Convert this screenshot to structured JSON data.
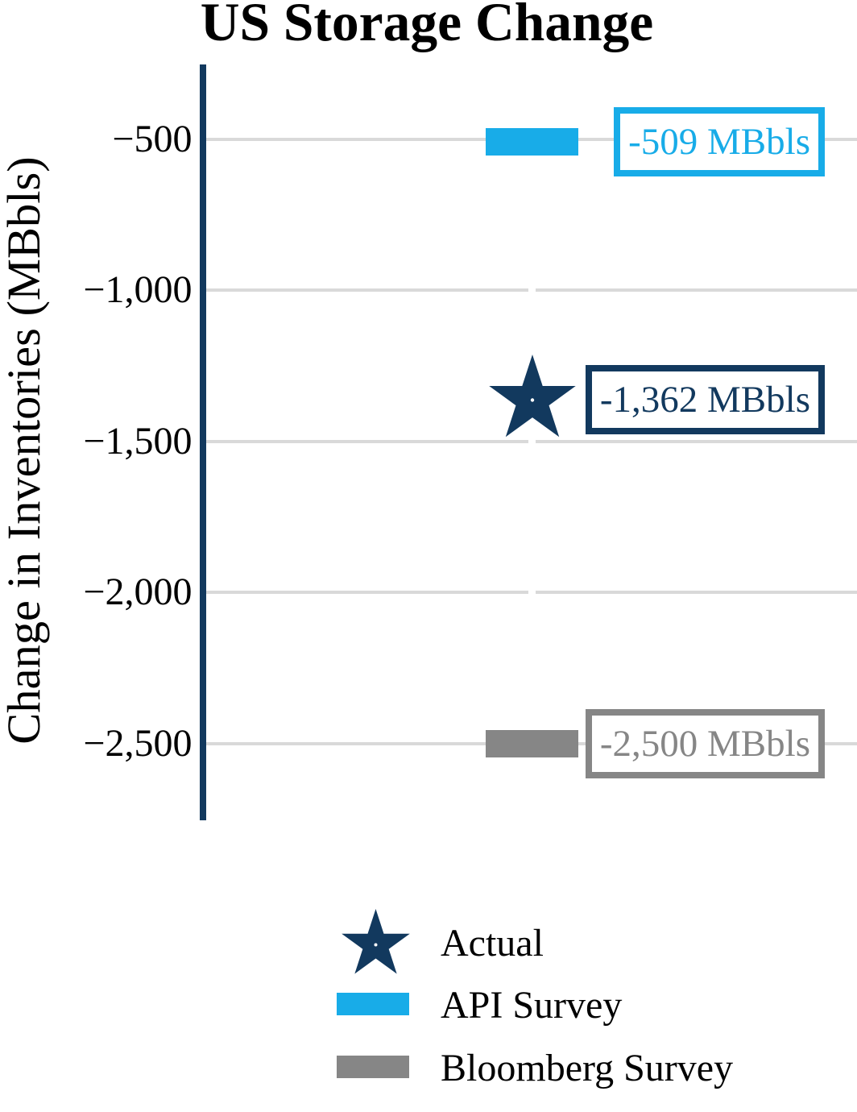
{
  "title": "US Storage Change",
  "y_axis": {
    "label": "Change in Inventories (MBbls)",
    "ticks": [
      {
        "value": -500,
        "label": "−500"
      },
      {
        "value": -1000,
        "label": "−1,000"
      },
      {
        "value": -1500,
        "label": "−1,500"
      },
      {
        "value": -2000,
        "label": "−2,000"
      },
      {
        "value": -2500,
        "label": "−2,500"
      }
    ]
  },
  "colors": {
    "navy": "#12395e",
    "cyan": "#18ace8",
    "gray": "#868686",
    "gridline": "#d9d9d9",
    "background": "#ffffff",
    "text": "#000000"
  },
  "legend": [
    {
      "name": "Actual",
      "marker": "star",
      "color": "#12395e"
    },
    {
      "name": "API Survey",
      "marker": "bar",
      "color": "#18ace8"
    },
    {
      "name": "Bloomberg Survey",
      "marker": "bar",
      "color": "#868686"
    }
  ],
  "chart_data": {
    "type": "scatter",
    "title": "US Storage Change",
    "xlabel": "",
    "ylabel": "Change in Inventories (MBbls)",
    "ylim": [
      -2750,
      -250
    ],
    "yticks": [
      -500,
      -1000,
      -1500,
      -2000,
      -2500
    ],
    "grid": "horizontal",
    "legend_position": "bottom",
    "series": [
      {
        "name": "Actual",
        "marker": "star",
        "color": "#12395e",
        "value": -1362,
        "data_label": "-1,362 MBbls"
      },
      {
        "name": "API Survey",
        "marker": "bar",
        "color": "#18ace8",
        "value": -509,
        "data_label": "-509 MBbls"
      },
      {
        "name": "Bloomberg Survey",
        "marker": "bar",
        "color": "#868686",
        "value": -2500,
        "data_label": "-2,500 MBbls"
      }
    ]
  }
}
